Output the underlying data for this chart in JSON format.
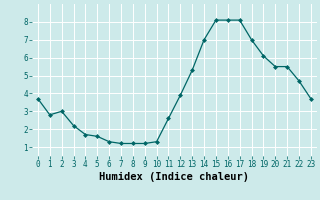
{
  "x": [
    0,
    1,
    2,
    3,
    4,
    5,
    6,
    7,
    8,
    9,
    10,
    11,
    12,
    13,
    14,
    15,
    16,
    17,
    18,
    19,
    20,
    21,
    22,
    23
  ],
  "y": [
    3.7,
    2.8,
    3.0,
    2.2,
    1.7,
    1.6,
    1.3,
    1.2,
    1.2,
    1.2,
    1.3,
    2.6,
    3.9,
    5.3,
    7.0,
    8.1,
    8.1,
    8.1,
    7.0,
    6.1,
    5.5,
    5.5,
    4.7,
    3.7
  ],
  "xlabel": "Humidex (Indice chaleur)",
  "xlim": [
    -0.5,
    23.5
  ],
  "ylim": [
    0.5,
    9.0
  ],
  "yticks": [
    1,
    2,
    3,
    4,
    5,
    6,
    7,
    8
  ],
  "xticks": [
    0,
    1,
    2,
    3,
    4,
    5,
    6,
    7,
    8,
    9,
    10,
    11,
    12,
    13,
    14,
    15,
    16,
    17,
    18,
    19,
    20,
    21,
    22,
    23
  ],
  "line_color": "#006666",
  "marker": "D",
  "marker_size": 2.0,
  "bg_color": "#cdeaea",
  "grid_color": "#ffffff",
  "tick_fontsize": 5.5,
  "label_fontsize": 7.5
}
